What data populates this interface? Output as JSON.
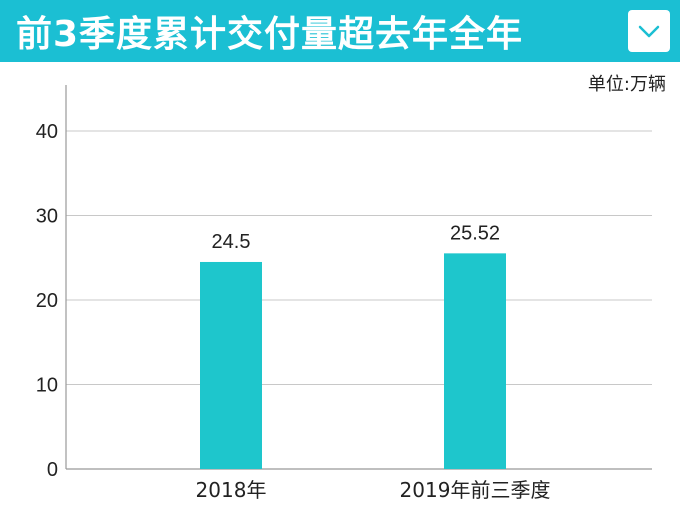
{
  "header": {
    "title": "前3季度累计交付量超去年全年",
    "icon": "chevron-down-icon",
    "bg_color": "#1bbfd3"
  },
  "unit_label": "单位:万辆",
  "chart_data": {
    "type": "bar",
    "categories": [
      "2018年",
      "2019年前三季度"
    ],
    "values": [
      24.5,
      25.52
    ],
    "data_labels": [
      "24.5",
      "25.52"
    ],
    "ylim": [
      0,
      45
    ],
    "yticks": [
      0,
      10,
      20,
      30,
      40
    ],
    "ytick_labels": [
      "0",
      "10",
      "20",
      "30",
      "40"
    ],
    "grid": true,
    "bar_color": "#1ec6cc",
    "title": "",
    "xlabel": "",
    "ylabel": ""
  }
}
